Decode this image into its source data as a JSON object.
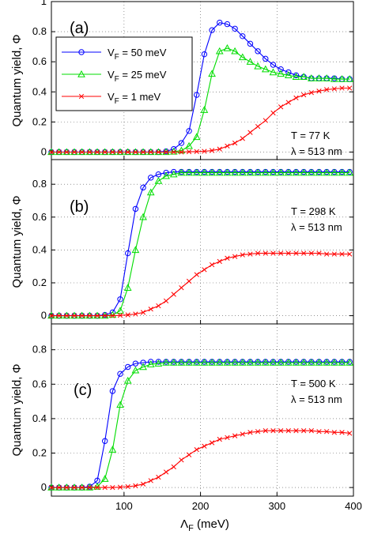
{
  "chart_data": {
    "type": "line",
    "x_axis": {
      "label": "Λ",
      "label_sub": "F",
      "label_unit": " (meV)",
      "range": [
        5,
        400
      ],
      "ticks": [
        100,
        200,
        300,
        400
      ]
    },
    "legend": {
      "placement": "top-left of panel (a)",
      "entries": [
        {
          "pre": "V",
          "sub": "F",
          "post": " = 50 meV"
        },
        {
          "pre": "V",
          "sub": "F",
          "post": " = 25 meV"
        },
        {
          "pre": "V",
          "sub": "F",
          "post": " = 1 meV"
        }
      ]
    },
    "series_style": [
      {
        "color": "#0000ff",
        "marker": "circle"
      },
      {
        "color": "#00dd00",
        "marker": "triangle"
      },
      {
        "color": "#ff0000",
        "marker": "x"
      }
    ],
    "grid": "dotted",
    "panels": [
      {
        "label": "(a)",
        "ylabel": "Quantum yield, Φ",
        "ylim": [
          -0.05,
          1.0
        ],
        "yticks": [
          0,
          0.2,
          0.4,
          0.6,
          0.8,
          1
        ],
        "ytick_labels": [
          "0",
          "0.2",
          "0.4",
          "0.6",
          "0.8",
          "1"
        ],
        "annotation": [
          "T = 77 K",
          "λ  =  513 nm"
        ],
        "series": [
          {
            "x": [
              5,
              15,
              25,
              35,
              45,
              55,
              65,
              75,
              85,
              95,
              105,
              115,
              125,
              135,
              145,
              155,
              165,
              175,
              185,
              195,
              205,
              215,
              225,
              235,
              245,
              255,
              265,
              275,
              285,
              295,
              305,
              315,
              325,
              335,
              345,
              355,
              365,
              375,
              385,
              395
            ],
            "y": [
              0,
              0,
              0,
              0,
              0,
              0,
              0,
              0,
              0,
              0,
              0,
              0,
              0,
              0,
              0,
              0.005,
              0.02,
              0.06,
              0.14,
              0.38,
              0.65,
              0.81,
              0.86,
              0.85,
              0.82,
              0.77,
              0.72,
              0.67,
              0.62,
              0.58,
              0.55,
              0.53,
              0.51,
              0.5,
              0.49,
              0.49,
              0.49,
              0.49,
              0.485,
              0.485
            ]
          },
          {
            "x": [
              5,
              15,
              25,
              35,
              45,
              55,
              65,
              75,
              85,
              95,
              105,
              115,
              125,
              135,
              145,
              155,
              165,
              175,
              185,
              195,
              205,
              215,
              225,
              235,
              245,
              255,
              265,
              275,
              285,
              295,
              305,
              315,
              325,
              335,
              345,
              355,
              365,
              375,
              385,
              395
            ],
            "y": [
              0,
              0,
              0,
              0,
              0,
              0,
              0,
              0,
              0,
              0,
              0,
              0,
              0,
              0,
              0,
              0,
              0.003,
              0.01,
              0.04,
              0.1,
              0.28,
              0.52,
              0.67,
              0.69,
              0.67,
              0.63,
              0.6,
              0.57,
              0.55,
              0.53,
              0.52,
              0.51,
              0.5,
              0.5,
              0.49,
              0.49,
              0.49,
              0.485,
              0.485,
              0.485
            ]
          },
          {
            "x": [
              5,
              15,
              25,
              35,
              45,
              55,
              65,
              75,
              85,
              95,
              105,
              115,
              125,
              135,
              145,
              155,
              165,
              175,
              185,
              195,
              205,
              215,
              225,
              235,
              245,
              255,
              265,
              275,
              285,
              295,
              305,
              315,
              325,
              335,
              345,
              355,
              365,
              375,
              385,
              395
            ],
            "y": [
              0,
              0,
              0,
              0,
              0,
              0,
              0,
              0,
              0,
              0,
              0,
              0,
              0,
              0,
              0,
              0,
              0,
              0,
              0.002,
              0.003,
              0.005,
              0.01,
              0.02,
              0.04,
              0.06,
              0.09,
              0.13,
              0.17,
              0.21,
              0.26,
              0.3,
              0.33,
              0.36,
              0.38,
              0.395,
              0.405,
              0.415,
              0.42,
              0.425,
              0.425
            ]
          }
        ]
      },
      {
        "label": "(b)",
        "ylabel": "Quantum yield, Φ",
        "ylim": [
          -0.05,
          0.95
        ],
        "yticks": [
          0,
          0.2,
          0.4,
          0.6,
          0.8
        ],
        "ytick_labels": [
          "0",
          "0.2",
          "0.4",
          "0.6",
          "0.8"
        ],
        "annotation": [
          "T = 298 K",
          "λ  =  513 nm"
        ],
        "series": [
          {
            "x": [
              5,
              15,
              25,
              35,
              45,
              55,
              65,
              75,
              85,
              95,
              105,
              115,
              125,
              135,
              145,
              155,
              165,
              175,
              185,
              195,
              205,
              215,
              225,
              235,
              245,
              255,
              265,
              275,
              285,
              295,
              305,
              315,
              325,
              335,
              345,
              355,
              365,
              375,
              385,
              395
            ],
            "y": [
              0,
              0,
              0,
              0,
              0,
              0,
              0,
              0.005,
              0.02,
              0.1,
              0.38,
              0.65,
              0.78,
              0.84,
              0.86,
              0.87,
              0.875,
              0.875,
              0.875,
              0.875,
              0.875,
              0.875,
              0.875,
              0.875,
              0.875,
              0.875,
              0.875,
              0.875,
              0.875,
              0.875,
              0.875,
              0.875,
              0.875,
              0.875,
              0.875,
              0.875,
              0.875,
              0.875,
              0.875,
              0.875
            ]
          },
          {
            "x": [
              5,
              15,
              25,
              35,
              45,
              55,
              65,
              75,
              85,
              95,
              105,
              115,
              125,
              135,
              145,
              155,
              165,
              175,
              185,
              195,
              205,
              215,
              225,
              235,
              245,
              255,
              265,
              275,
              285,
              295,
              305,
              315,
              325,
              335,
              345,
              355,
              365,
              375,
              385,
              395
            ],
            "y": [
              0,
              0,
              0,
              0,
              0,
              0,
              0,
              0,
              0.005,
              0.03,
              0.17,
              0.4,
              0.6,
              0.75,
              0.82,
              0.85,
              0.86,
              0.87,
              0.87,
              0.87,
              0.87,
              0.87,
              0.87,
              0.87,
              0.87,
              0.87,
              0.87,
              0.87,
              0.87,
              0.87,
              0.87,
              0.87,
              0.87,
              0.87,
              0.87,
              0.87,
              0.87,
              0.87,
              0.87,
              0.87
            ]
          },
          {
            "x": [
              5,
              15,
              25,
              35,
              45,
              55,
              65,
              75,
              85,
              95,
              105,
              115,
              125,
              135,
              145,
              155,
              165,
              175,
              185,
              195,
              205,
              215,
              225,
              235,
              245,
              255,
              265,
              275,
              285,
              295,
              305,
              315,
              325,
              335,
              345,
              355,
              365,
              375,
              385,
              395
            ],
            "y": [
              0,
              0,
              0,
              0,
              0,
              0,
              0,
              0,
              0,
              0.002,
              0.005,
              0.01,
              0.02,
              0.04,
              0.06,
              0.09,
              0.13,
              0.17,
              0.21,
              0.25,
              0.28,
              0.31,
              0.33,
              0.35,
              0.36,
              0.37,
              0.375,
              0.38,
              0.38,
              0.38,
              0.38,
              0.38,
              0.38,
              0.38,
              0.38,
              0.38,
              0.375,
              0.375,
              0.375,
              0.375
            ]
          }
        ]
      },
      {
        "label": "(c)",
        "ylabel": "Quantum yield, Φ",
        "ylim": [
          -0.05,
          0.95
        ],
        "yticks": [
          0,
          0.2,
          0.4,
          0.6,
          0.8
        ],
        "ytick_labels": [
          "0",
          "0.2",
          "0.4",
          "0.6",
          "0.8"
        ],
        "annotation": [
          "T = 500 K",
          "λ  =  513 nm"
        ],
        "series": [
          {
            "x": [
              5,
              15,
              25,
              35,
              45,
              55,
              65,
              75,
              85,
              95,
              105,
              115,
              125,
              135,
              145,
              155,
              165,
              175,
              185,
              195,
              205,
              215,
              225,
              235,
              245,
              255,
              265,
              275,
              285,
              295,
              305,
              315,
              325,
              335,
              345,
              355,
              365,
              375,
              385,
              395
            ],
            "y": [
              0,
              0,
              0,
              0,
              0,
              0.005,
              0.04,
              0.27,
              0.56,
              0.66,
              0.7,
              0.72,
              0.725,
              0.73,
              0.73,
              0.73,
              0.73,
              0.73,
              0.73,
              0.73,
              0.73,
              0.73,
              0.73,
              0.73,
              0.73,
              0.73,
              0.73,
              0.73,
              0.73,
              0.73,
              0.73,
              0.73,
              0.73,
              0.73,
              0.73,
              0.73,
              0.73,
              0.73,
              0.73,
              0.73
            ]
          },
          {
            "x": [
              5,
              15,
              25,
              35,
              45,
              55,
              65,
              75,
              85,
              95,
              105,
              115,
              125,
              135,
              145,
              155,
              165,
              175,
              185,
              195,
              205,
              215,
              225,
              235,
              245,
              255,
              265,
              275,
              285,
              295,
              305,
              315,
              325,
              335,
              345,
              355,
              365,
              375,
              385,
              395
            ],
            "y": [
              0,
              0,
              0,
              0,
              0,
              0,
              0.005,
              0.05,
              0.22,
              0.48,
              0.62,
              0.68,
              0.7,
              0.715,
              0.72,
              0.725,
              0.725,
              0.725,
              0.725,
              0.725,
              0.725,
              0.725,
              0.725,
              0.725,
              0.725,
              0.725,
              0.725,
              0.725,
              0.725,
              0.725,
              0.725,
              0.725,
              0.725,
              0.725,
              0.725,
              0.725,
              0.725,
              0.725,
              0.725,
              0.725
            ]
          },
          {
            "x": [
              5,
              15,
              25,
              35,
              45,
              55,
              65,
              75,
              85,
              95,
              105,
              115,
              125,
              135,
              145,
              155,
              165,
              175,
              185,
              195,
              205,
              215,
              225,
              235,
              245,
              255,
              265,
              275,
              285,
              295,
              305,
              315,
              325,
              335,
              345,
              355,
              365,
              375,
              385,
              395
            ],
            "y": [
              0,
              0,
              0,
              0,
              0,
              0,
              0,
              0,
              0,
              0.002,
              0.005,
              0.01,
              0.02,
              0.04,
              0.06,
              0.09,
              0.12,
              0.16,
              0.19,
              0.22,
              0.24,
              0.26,
              0.28,
              0.29,
              0.3,
              0.31,
              0.32,
              0.325,
              0.33,
              0.33,
              0.33,
              0.33,
              0.33,
              0.33,
              0.33,
              0.325,
              0.325,
              0.32,
              0.32,
              0.315
            ]
          }
        ]
      }
    ]
  }
}
